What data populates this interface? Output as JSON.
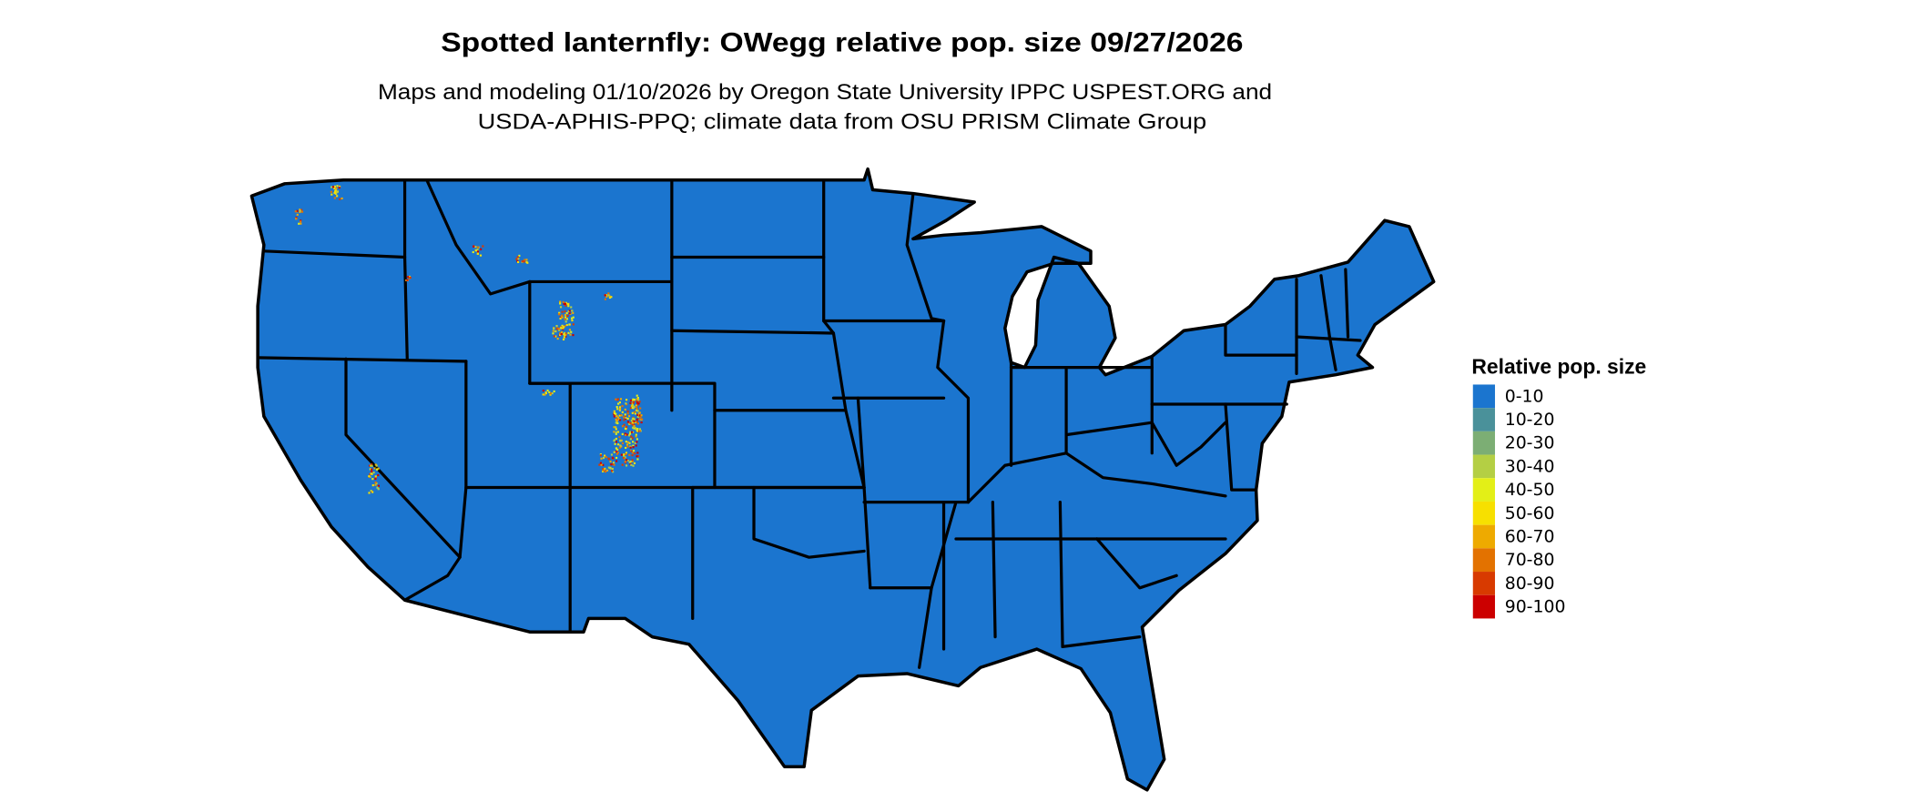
{
  "title": "Spotted lanternfly: OWegg relative pop. size 09/27/2026",
  "subtitle_line1": "Maps and modeling 01/10/2026 by Oregon State University IPPC USPEST.ORG and",
  "subtitle_line2": "USDA-APHIS-PPQ; climate data from OSU PRISM Climate Group",
  "map": {
    "region": "Contiguous United States",
    "background_class_color": "#1b75cf"
  },
  "legend": {
    "title": "Relative pop. size",
    "items": [
      {
        "label": "0-10",
        "color": "#1b75cf"
      },
      {
        "label": "10-20",
        "color": "#4a919a"
      },
      {
        "label": "20-30",
        "color": "#7cae74"
      },
      {
        "label": "30-40",
        "color": "#b4cf44"
      },
      {
        "label": "40-50",
        "color": "#e3ef17"
      },
      {
        "label": "50-60",
        "color": "#f7e000"
      },
      {
        "label": "60-70",
        "color": "#eeaa00"
      },
      {
        "label": "70-80",
        "color": "#e37200"
      },
      {
        "label": "80-90",
        "color": "#d83a00"
      },
      {
        "label": "90-100",
        "color": "#cc0000"
      }
    ]
  }
}
